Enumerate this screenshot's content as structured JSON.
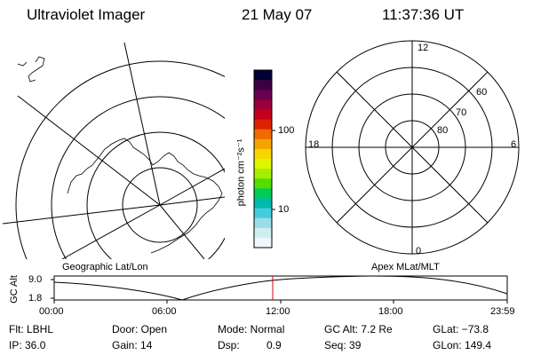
{
  "header": {
    "title": "Ultraviolet Imager",
    "date": "21 May 07",
    "time": "11:37:36 UT"
  },
  "geo_map": {
    "caption": "Geographic Lat/Lon"
  },
  "colorbar": {
    "unit_label": "photon cm⁻²s⁻¹",
    "tick_labels": [
      "100",
      "10"
    ],
    "colors": [
      "#000033",
      "#3a0040",
      "#6a0050",
      "#99003a",
      "#c4001c",
      "#dd2200",
      "#ee6a00",
      "#f5a300",
      "#f8d600",
      "#dff500",
      "#a6ee00",
      "#55dd00",
      "#00cc55",
      "#00bbaa",
      "#44ccdd",
      "#99dde8",
      "#d0eef2",
      "#eef8fa"
    ]
  },
  "polar_plot": {
    "caption": "Apex MLat/MLT",
    "mlt_labels": [
      "12",
      "18",
      "6",
      "0"
    ],
    "lat_labels": [
      "60",
      "70",
      "80"
    ]
  },
  "altitude_strip": {
    "y_label": "GC Alt",
    "y_ticks": [
      "9.0",
      "1.8"
    ],
    "x_ticks": [
      "00:00",
      "06:00",
      "12:00",
      "18:00",
      "23:59"
    ],
    "marker_color": "#dd0000",
    "marker_time": "11:37:36"
  },
  "info": {
    "flt": "Flt: LBHL",
    "ip": "IP: 36.0",
    "door": "Door: Open",
    "gain": "Gain: 14",
    "mode": "Mode: Normal",
    "dsp_label": "Dsp:",
    "dsp_value": "0.9",
    "gc_alt": "GC Alt: 7.2 Re",
    "seq": "Seq: 39",
    "glat": "GLat: −73.8",
    "glon": "GLon: 149.4"
  }
}
